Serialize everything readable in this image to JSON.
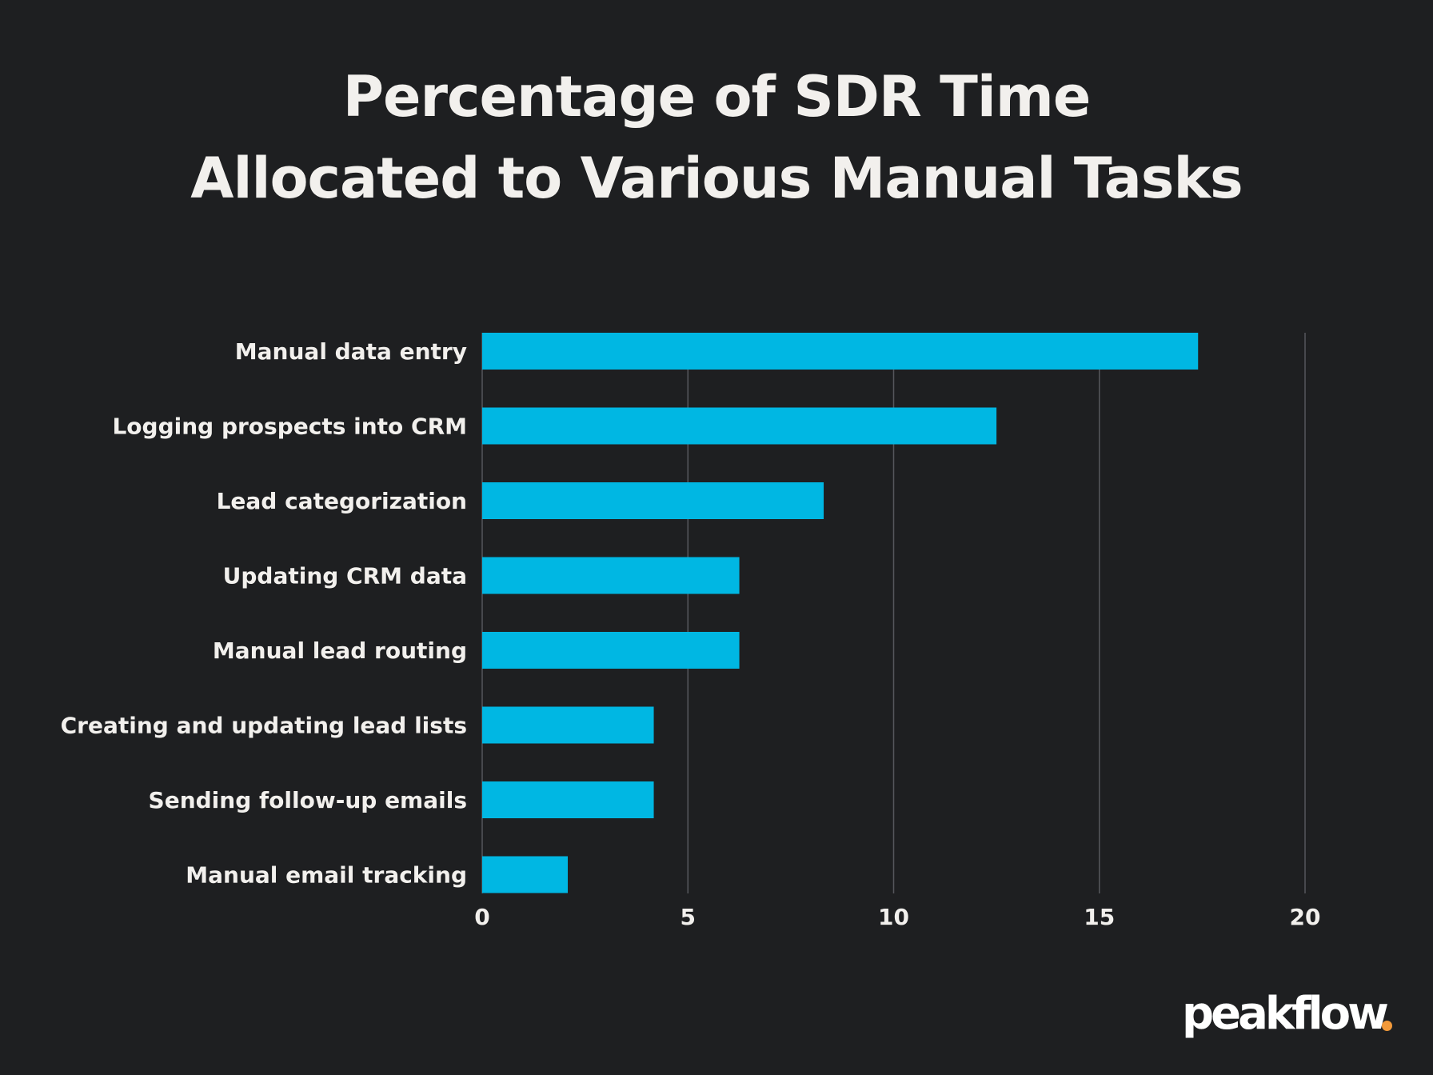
{
  "chart_data": {
    "type": "bar",
    "orientation": "horizontal",
    "title": [
      "Percentage of SDR Time",
      "Allocated to Various Manual Tasks"
    ],
    "categories": [
      "Manual data entry",
      "Logging prospects into CRM",
      "Lead categorization",
      "Updating CRM data",
      "Manual lead routing",
      "Creating and updating lead lists",
      "Sending follow-up emails",
      "Manual email tracking"
    ],
    "values": [
      17.4,
      12.5,
      8.3,
      6.25,
      6.25,
      4.17,
      4.17,
      2.08
    ],
    "xlim": [
      0,
      20
    ],
    "xticks": [
      0,
      5,
      10,
      15,
      20
    ],
    "xlabel": "",
    "ylabel": "",
    "grid": "vertical",
    "bar_color": "#00b7e3"
  },
  "brand": {
    "name": "peakflow",
    "dot_color": "#f39a3a"
  }
}
